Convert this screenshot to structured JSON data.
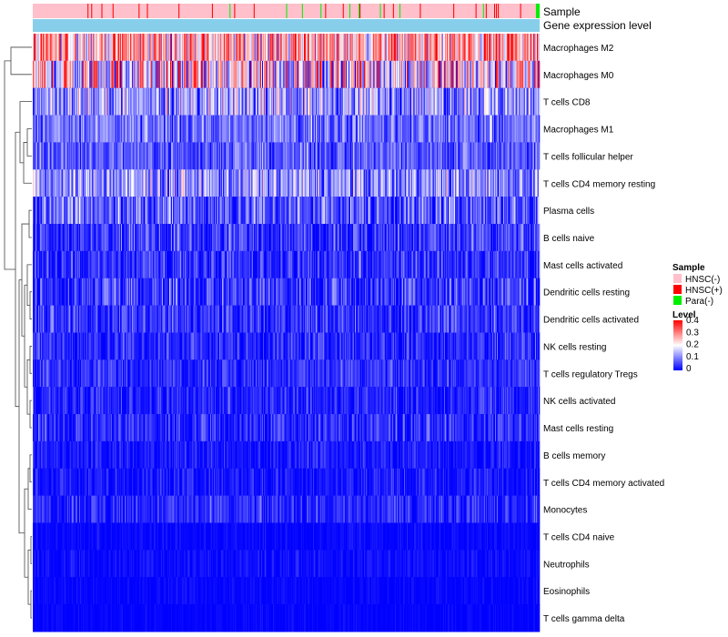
{
  "chart_data": {
    "type": "heatmap",
    "title": "",
    "annotation_tracks": [
      {
        "name": "Sample"
      },
      {
        "name": "Gene expression level"
      }
    ],
    "rows": [
      {
        "label": "Macrophages M2",
        "mean": 0.26,
        "spread": 0.09
      },
      {
        "label": "Macrophages M0",
        "mean": 0.2,
        "spread": 0.13
      },
      {
        "label": "T cells CD8",
        "mean": 0.12,
        "spread": 0.07
      },
      {
        "label": "Macrophages M1",
        "mean": 0.085,
        "spread": 0.045
      },
      {
        "label": "T cells follicular helper",
        "mean": 0.07,
        "spread": 0.04
      },
      {
        "label": "T cells CD4 memory resting",
        "mean": 0.11,
        "spread": 0.065
      },
      {
        "label": "Plasma cells",
        "mean": 0.065,
        "spread": 0.06
      },
      {
        "label": "B cells naive",
        "mean": 0.04,
        "spread": 0.045
      },
      {
        "label": "Mast cells activated",
        "mean": 0.035,
        "spread": 0.04
      },
      {
        "label": "Dendritic cells resting",
        "mean": 0.04,
        "spread": 0.05
      },
      {
        "label": "Dendritic cells activated",
        "mean": 0.035,
        "spread": 0.04
      },
      {
        "label": "NK cells resting",
        "mean": 0.03,
        "spread": 0.035
      },
      {
        "label": "T cells regulatory  Tregs",
        "mean": 0.035,
        "spread": 0.03
      },
      {
        "label": "NK cells activated",
        "mean": 0.025,
        "spread": 0.03
      },
      {
        "label": "Mast cells resting",
        "mean": 0.03,
        "spread": 0.035
      },
      {
        "label": "B cells memory",
        "mean": 0.015,
        "spread": 0.025
      },
      {
        "label": "T cells CD4 memory activated",
        "mean": 0.015,
        "spread": 0.025
      },
      {
        "label": "Monocytes",
        "mean": 0.03,
        "spread": 0.03
      },
      {
        "label": "T cells CD4 naive",
        "mean": 0.004,
        "spread": 0.012
      },
      {
        "label": "Neutrophils",
        "mean": 0.008,
        "spread": 0.014
      },
      {
        "label": "Eosinophils",
        "mean": 0.003,
        "spread": 0.01
      },
      {
        "label": "T cells gamma delta",
        "mean": 0.002,
        "spread": 0.008
      }
    ],
    "n_samples": 546,
    "sample_groups": [
      {
        "name": "HNSC(-)",
        "color": "#ffc0cb"
      },
      {
        "name": "HNSC(+)",
        "color": "#ff0000"
      },
      {
        "name": "Para(-)",
        "color": "#00ee00"
      }
    ],
    "gene_expression_color": "#87ceeb",
    "color_scale": {
      "label": "Level",
      "min": 0,
      "max": 0.4,
      "ticks": [
        "0.4",
        "0.3",
        "0.2",
        "0.1",
        "0"
      ],
      "colors": [
        "#0000ff",
        "#ffffff",
        "#ff0000"
      ]
    },
    "legend_position": "right",
    "sample_legend_title": "Sample",
    "dendrogram": "rows"
  }
}
